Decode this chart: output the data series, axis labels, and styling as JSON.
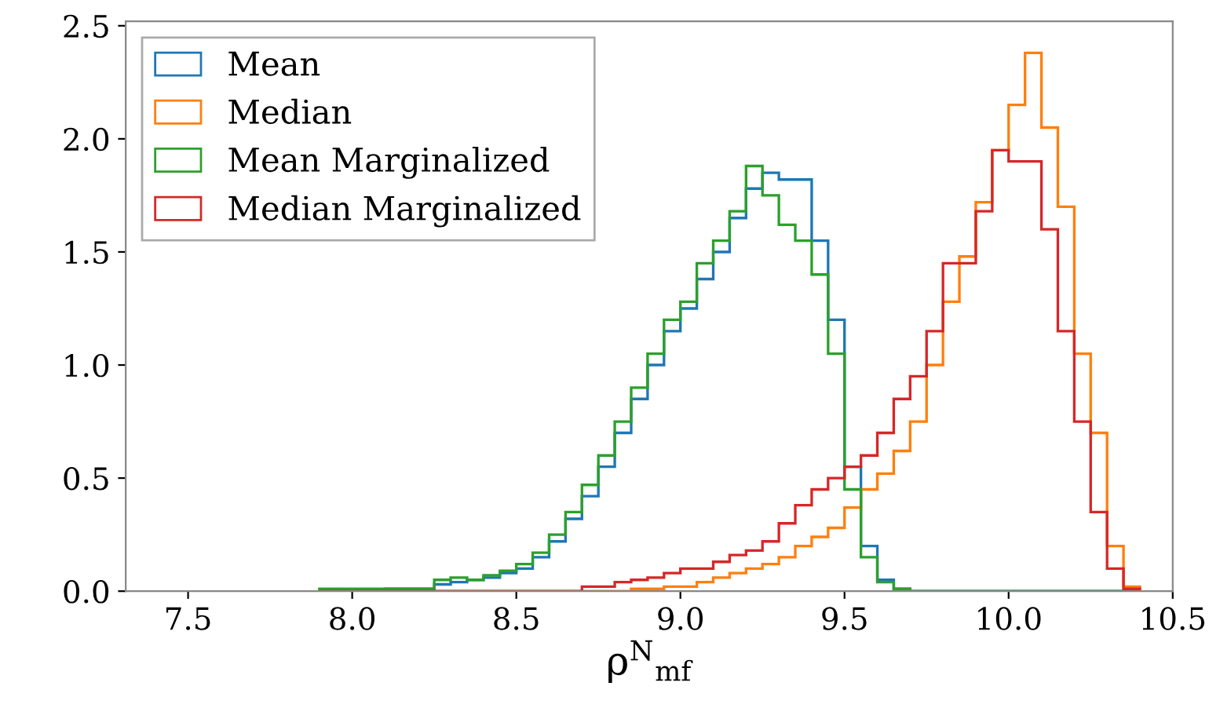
{
  "chart_data": {
    "type": "histogram",
    "xlabel": "ρ$^{N}$$_{mf}$",
    "xlim": [
      7.31,
      10.5
    ],
    "ylim": [
      0,
      2.52
    ],
    "xticks": [
      {
        "value": 7.5,
        "label": "7.5"
      },
      {
        "value": 8.0,
        "label": "8.0"
      },
      {
        "value": 8.5,
        "label": "8.5"
      },
      {
        "value": 9.0,
        "label": "9.0"
      },
      {
        "value": 9.5,
        "label": "9.5"
      },
      {
        "value": 10.0,
        "label": "10.0"
      },
      {
        "value": 10.5,
        "label": "10.5"
      }
    ],
    "yticks": [
      {
        "value": 0,
        "label": "0.0"
      },
      {
        "value": 0.5,
        "label": "0.5"
      },
      {
        "value": 1.0,
        "label": "1.0"
      },
      {
        "value": 1.5,
        "label": "1.5"
      },
      {
        "value": 2.0,
        "label": "2.0"
      },
      {
        "value": 2.5,
        "label": "2.5"
      }
    ],
    "grid": false,
    "legend": "top left",
    "bins": [
      7.9,
      7.95,
      8.0,
      8.05,
      8.1,
      8.15,
      8.2,
      8.25,
      8.3,
      8.35,
      8.4,
      8.45,
      8.5,
      8.55,
      8.6,
      8.65,
      8.7,
      8.75,
      8.8,
      8.85,
      8.9,
      8.95,
      9.0,
      9.05,
      9.1,
      9.15,
      9.2,
      9.25,
      9.3,
      9.35,
      9.4,
      9.45,
      9.5,
      9.55,
      9.6,
      9.65,
      9.7,
      9.75,
      9.8,
      9.85,
      9.9,
      9.95,
      10.0,
      10.05,
      10.1,
      10.15,
      10.2,
      10.25,
      10.3,
      10.35,
      10.4
    ],
    "series": [
      {
        "name": "Mean",
        "color": "#1f77b4",
        "values": [
          0,
          0,
          0,
          0,
          0.01,
          0.01,
          0.01,
          0.03,
          0.04,
          0.05,
          0.06,
          0.08,
          0.1,
          0.15,
          0.22,
          0.32,
          0.42,
          0.55,
          0.7,
          0.85,
          1.0,
          1.15,
          1.25,
          1.38,
          1.5,
          1.65,
          1.78,
          1.85,
          1.82,
          1.82,
          1.55,
          1.2,
          0.55,
          0.2,
          0.05,
          0.01,
          0,
          0,
          0,
          0,
          0,
          0,
          0,
          0,
          0,
          0,
          0,
          0,
          0,
          0
        ]
      },
      {
        "name": "Median",
        "color": "#ff7f0e",
        "values": [
          0,
          0,
          0,
          0,
          0,
          0,
          0,
          0,
          0,
          0,
          0,
          0,
          0,
          0,
          0,
          0,
          0,
          0,
          0,
          0.01,
          0.01,
          0.02,
          0.02,
          0.04,
          0.06,
          0.08,
          0.1,
          0.12,
          0.15,
          0.2,
          0.24,
          0.28,
          0.37,
          0.45,
          0.52,
          0.62,
          0.75,
          1.0,
          1.28,
          1.48,
          1.72,
          1.95,
          2.15,
          2.38,
          2.05,
          1.7,
          1.05,
          0.7,
          0.2,
          0.02
        ]
      },
      {
        "name": "Mean Marginalized",
        "color": "#2ca02c",
        "values": [
          0.01,
          0.01,
          0.01,
          0.01,
          0.01,
          0.01,
          0.01,
          0.05,
          0.06,
          0.05,
          0.07,
          0.09,
          0.12,
          0.17,
          0.25,
          0.35,
          0.47,
          0.6,
          0.75,
          0.9,
          1.05,
          1.2,
          1.28,
          1.45,
          1.55,
          1.68,
          1.88,
          1.75,
          1.62,
          1.55,
          1.4,
          1.05,
          0.45,
          0.15,
          0.04,
          0.01,
          0,
          0,
          0,
          0,
          0,
          0,
          0,
          0,
          0,
          0,
          0,
          0,
          0,
          0
        ]
      },
      {
        "name": "Median Marginalized",
        "color": "#d62728",
        "values": [
          0,
          0,
          0,
          0,
          0,
          0,
          0,
          0,
          0,
          0,
          0,
          0,
          0,
          0,
          0,
          0,
          0.02,
          0.02,
          0.04,
          0.05,
          0.06,
          0.08,
          0.1,
          0.1,
          0.13,
          0.16,
          0.18,
          0.22,
          0.3,
          0.38,
          0.45,
          0.5,
          0.55,
          0.6,
          0.7,
          0.85,
          0.95,
          1.15,
          1.45,
          1.45,
          1.68,
          1.95,
          1.9,
          1.9,
          1.6,
          1.15,
          0.75,
          0.35,
          0.1,
          0.01
        ]
      }
    ]
  }
}
